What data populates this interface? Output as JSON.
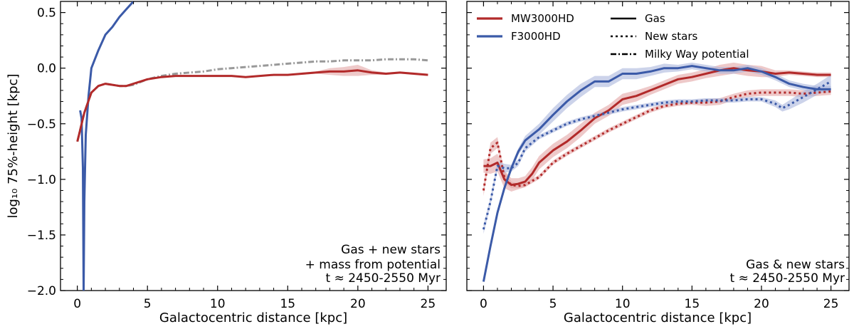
{
  "colors": {
    "mw": "#b22a2a",
    "f3000": "#3b5aa8",
    "potential": "#999999",
    "mw_band": "#e3a5a5",
    "f3000_band": "#aab6dc"
  },
  "chart_data": [
    {
      "type": "line",
      "panel": "left",
      "xlabel": "Galactocentric distance [kpc]",
      "ylabel": "log₁₀ 75%-height [kpc]",
      "xlim": [
        -1.2,
        26.3
      ],
      "ylim": [
        -2.0,
        0.6
      ],
      "xticks": [
        0,
        5,
        10,
        15,
        20,
        25
      ],
      "yticks": [
        -2.0,
        -1.5,
        -1.0,
        -0.5,
        0.0,
        0.5
      ],
      "xtick_labels": [
        "0",
        "5",
        "10",
        "15",
        "20",
        "25"
      ],
      "ytick_labels": [
        "−2.0",
        "−1.5",
        "−1.0",
        "−0.5",
        "0.0",
        "0.5"
      ],
      "annotation": [
        "Gas + new stars",
        "+ mass from potential",
        "t ≈ 2450-2550 Myr"
      ],
      "series": [
        {
          "name": "F3000HD",
          "color_key": "f3000",
          "dash": "solid",
          "x": [
            0.45,
            0.5,
            0.6,
            0.8,
            1.0,
            1.5,
            2.0,
            2.5,
            3.0,
            3.5,
            4.0
          ],
          "y": [
            -2.0,
            -1.2,
            -0.6,
            -0.25,
            0.0,
            0.16,
            0.3,
            0.37,
            0.46,
            0.53,
            0.6
          ]
        },
        {
          "name": "F3000HD (left branch)",
          "color_key": "f3000",
          "dash": "solid",
          "x": [
            0.45,
            0.4,
            0.3,
            0.2
          ],
          "y": [
            -2.0,
            -0.9,
            -0.45,
            -0.38
          ]
        },
        {
          "name": "Milky Way potential",
          "color_key": "potential",
          "dash": "dashdot",
          "x": [
            0,
            0.5,
            1,
            1.5,
            2,
            2.5,
            3,
            3.5,
            4,
            5,
            6,
            7,
            8,
            9,
            10,
            11,
            12,
            13,
            14,
            15,
            16,
            17,
            18,
            19,
            20,
            21,
            22,
            23,
            24,
            25
          ],
          "y": [
            -0.66,
            -0.4,
            -0.22,
            -0.16,
            -0.14,
            -0.15,
            -0.16,
            -0.16,
            -0.15,
            -0.1,
            -0.07,
            -0.05,
            -0.04,
            -0.03,
            -0.01,
            0.0,
            0.01,
            0.02,
            0.03,
            0.04,
            0.05,
            0.06,
            0.06,
            0.07,
            0.07,
            0.07,
            0.08,
            0.08,
            0.08,
            0.07
          ]
        },
        {
          "name": "MW3000HD",
          "color_key": "mw",
          "dash": "solid",
          "band": true,
          "band_key": "mw_band",
          "x": [
            0,
            0.5,
            1,
            1.5,
            2,
            2.5,
            3,
            3.5,
            4,
            5,
            6,
            7,
            8,
            9,
            10,
            11,
            12,
            13,
            14,
            15,
            16,
            17,
            18,
            19,
            20,
            21,
            22,
            23,
            24,
            25
          ],
          "y": [
            -0.66,
            -0.4,
            -0.22,
            -0.16,
            -0.14,
            -0.15,
            -0.16,
            -0.16,
            -0.14,
            -0.1,
            -0.08,
            -0.07,
            -0.07,
            -0.07,
            -0.07,
            -0.07,
            -0.08,
            -0.07,
            -0.06,
            -0.06,
            -0.05,
            -0.04,
            -0.03,
            -0.03,
            -0.02,
            -0.04,
            -0.05,
            -0.04,
            -0.05,
            -0.06
          ],
          "band_hw": [
            0,
            0,
            0,
            0,
            0,
            0,
            0,
            0,
            0,
            0,
            0,
            0,
            0,
            0,
            0,
            0,
            0,
            0,
            0,
            0,
            0.01,
            0.01,
            0.03,
            0.04,
            0.05,
            0.02,
            0.01,
            0.01,
            0.01,
            0.01
          ]
        }
      ]
    },
    {
      "type": "line",
      "panel": "right",
      "xlabel": "Galactocentric distance [kpc]",
      "ylabel": "",
      "xlim": [
        -1.2,
        26.3
      ],
      "ylim": [
        -2.0,
        0.6
      ],
      "xticks": [
        0,
        5,
        10,
        15,
        20,
        25
      ],
      "yticks": [
        -2.0,
        -1.5,
        -1.0,
        -0.5,
        0.0,
        0.5
      ],
      "xtick_labels": [
        "0",
        "5",
        "10",
        "15",
        "20",
        "25"
      ],
      "annotation": [
        "Gas & new stars",
        "t ≈ 2450-2550 Myr"
      ],
      "legend": {
        "placement": "top-left",
        "models": [
          {
            "label": "MW3000HD",
            "color_key": "mw"
          },
          {
            "label": "F3000HD",
            "color_key": "f3000"
          }
        ],
        "styles": [
          {
            "label": "Gas",
            "dash": "solid"
          },
          {
            "label": "New stars",
            "dash": "dotted"
          },
          {
            "label": "Milky Way potential",
            "dash": "dashdot"
          }
        ]
      },
      "series": [
        {
          "name": "MW3000HD gas",
          "color_key": "mw",
          "dash": "solid",
          "band": true,
          "band_key": "mw_band",
          "x": [
            0,
            0.5,
            1,
            1.5,
            2,
            2.5,
            3,
            3.5,
            4,
            5,
            6,
            7,
            8,
            9,
            10,
            11,
            12,
            13,
            14,
            15,
            16,
            17,
            18,
            19,
            20,
            21,
            22,
            23,
            24,
            25
          ],
          "y": [
            -0.88,
            -0.88,
            -0.85,
            -1.0,
            -1.05,
            -1.04,
            -1.02,
            -0.95,
            -0.85,
            -0.74,
            -0.66,
            -0.56,
            -0.45,
            -0.38,
            -0.28,
            -0.25,
            -0.2,
            -0.15,
            -0.1,
            -0.08,
            -0.05,
            -0.02,
            0.0,
            -0.02,
            -0.03,
            -0.05,
            -0.04,
            -0.05,
            -0.06,
            -0.06
          ],
          "band_hw": [
            0.06,
            0.07,
            0.08,
            0.08,
            0.06,
            0.05,
            0.05,
            0.06,
            0.06,
            0.06,
            0.06,
            0.06,
            0.05,
            0.05,
            0.05,
            0.05,
            0.04,
            0.04,
            0.04,
            0.04,
            0.04,
            0.05,
            0.05,
            0.05,
            0.05,
            0.03,
            0.02,
            0.02,
            0.02,
            0.02
          ]
        },
        {
          "name": "MW3000HD new stars",
          "color_key": "mw",
          "dash": "dotted",
          "band": true,
          "band_key": "mw_band",
          "x": [
            0,
            0.5,
            1,
            1.5,
            2,
            2.5,
            3,
            4,
            5,
            6,
            7,
            8,
            9,
            10,
            11,
            12,
            13,
            14,
            15,
            16,
            17,
            18,
            19,
            20,
            21,
            22,
            23,
            24,
            25
          ],
          "y": [
            -1.1,
            -0.72,
            -0.67,
            -0.98,
            -1.05,
            -1.06,
            -1.05,
            -0.98,
            -0.85,
            -0.77,
            -0.7,
            -0.63,
            -0.56,
            -0.5,
            -0.44,
            -0.38,
            -0.34,
            -0.32,
            -0.31,
            -0.31,
            -0.3,
            -0.26,
            -0.23,
            -0.22,
            -0.22,
            -0.22,
            -0.23,
            -0.22,
            -0.21
          ],
          "band_hw": [
            0.05,
            0.05,
            0.05,
            0.05,
            0.03,
            0.02,
            0.02,
            0.02,
            0.02,
            0.02,
            0.02,
            0.02,
            0.02,
            0.02,
            0.02,
            0.02,
            0.02,
            0.02,
            0.02,
            0.03,
            0.03,
            0.03,
            0.03,
            0.03,
            0.03,
            0.03,
            0.03,
            0.03,
            0.03
          ]
        },
        {
          "name": "F3000HD gas",
          "color_key": "f3000",
          "dash": "solid",
          "band": true,
          "band_key": "f3000_band",
          "x": [
            0,
            0.5,
            1,
            1.5,
            2,
            2.5,
            3,
            4,
            5,
            6,
            7,
            8,
            9,
            10,
            11,
            12,
            13,
            14,
            15,
            16,
            17,
            18,
            19,
            20,
            21,
            22,
            23,
            24,
            25
          ],
          "y": [
            -1.92,
            -1.6,
            -1.3,
            -1.08,
            -0.9,
            -0.75,
            -0.65,
            -0.55,
            -0.42,
            -0.3,
            -0.2,
            -0.12,
            -0.12,
            -0.05,
            -0.05,
            -0.03,
            0.0,
            0.0,
            0.02,
            0.0,
            -0.02,
            -0.02,
            0.0,
            -0.03,
            -0.08,
            -0.14,
            -0.17,
            -0.19,
            -0.19
          ],
          "band_hw": [
            0.01,
            0.01,
            0.02,
            0.02,
            0.03,
            0.03,
            0.04,
            0.05,
            0.06,
            0.06,
            0.06,
            0.05,
            0.05,
            0.05,
            0.05,
            0.04,
            0.04,
            0.03,
            0.03,
            0.03,
            0.03,
            0.03,
            0.03,
            0.03,
            0.03,
            0.03,
            0.03,
            0.03,
            0.03
          ]
        },
        {
          "name": "F3000HD new stars",
          "color_key": "f3000",
          "dash": "dotted",
          "band": true,
          "band_key": "f3000_band",
          "x": [
            0,
            0.5,
            1,
            1.5,
            2,
            2.5,
            3,
            4,
            5,
            6,
            7,
            8,
            9,
            10,
            11,
            12,
            13,
            14,
            15,
            16,
            17,
            18,
            19,
            20,
            21,
            21.5,
            22,
            23,
            24,
            25
          ],
          "y": [
            -1.45,
            -1.2,
            -0.88,
            -0.9,
            -0.9,
            -0.85,
            -0.72,
            -0.62,
            -0.56,
            -0.5,
            -0.46,
            -0.43,
            -0.4,
            -0.37,
            -0.35,
            -0.33,
            -0.31,
            -0.3,
            -0.3,
            -0.29,
            -0.29,
            -0.29,
            -0.28,
            -0.28,
            -0.32,
            -0.36,
            -0.33,
            -0.26,
            -0.19,
            -0.12
          ],
          "band_hw": [
            0.04,
            0.04,
            0.04,
            0.04,
            0.03,
            0.03,
            0.03,
            0.02,
            0.02,
            0.02,
            0.02,
            0.02,
            0.02,
            0.02,
            0.02,
            0.02,
            0.02,
            0.02,
            0.02,
            0.02,
            0.02,
            0.02,
            0.02,
            0.02,
            0.03,
            0.03,
            0.04,
            0.05,
            0.05,
            0.06
          ]
        }
      ]
    }
  ]
}
